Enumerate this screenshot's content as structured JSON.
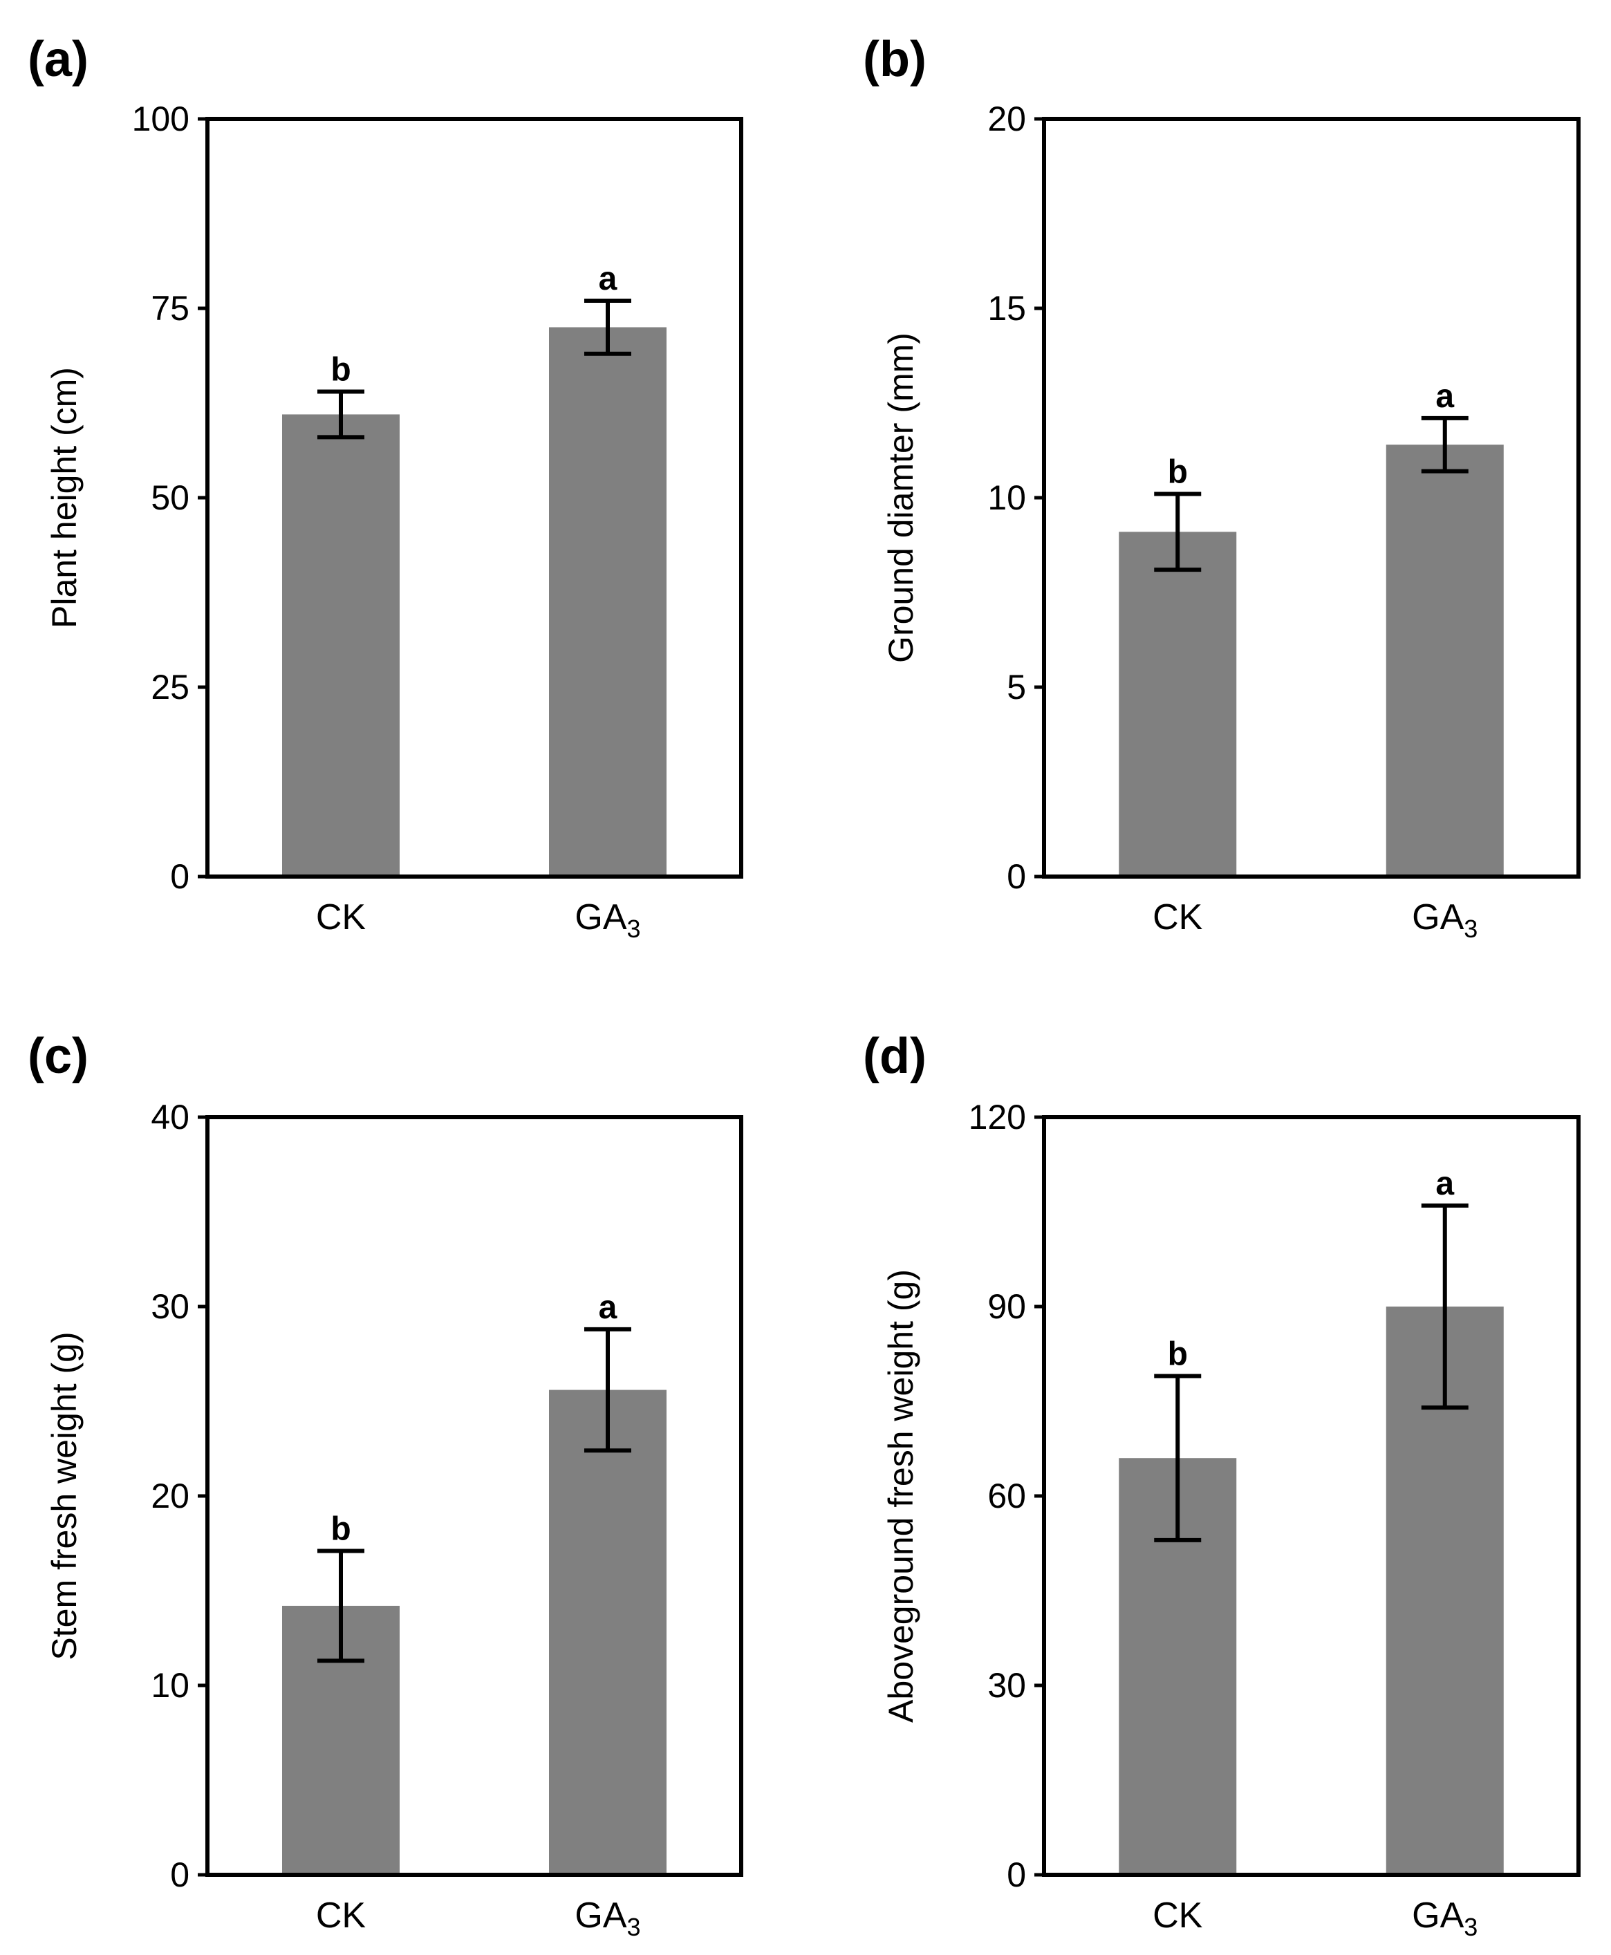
{
  "chart_data": [
    {
      "type": "bar",
      "panel": "(a)",
      "categories": [
        "CK",
        "GA"
      ],
      "category_subscripts": [
        "",
        "3"
      ],
      "values": [
        61,
        72.5
      ],
      "errors": [
        3,
        3.5
      ],
      "significance": [
        "b",
        "a"
      ],
      "ylabel": "Plant height (cm)",
      "ylim": [
        0,
        100
      ],
      "yticks": [
        0,
        25,
        50,
        75,
        100
      ],
      "bar_color": "#808080"
    },
    {
      "type": "bar",
      "panel": "(b)",
      "categories": [
        "CK",
        "GA"
      ],
      "category_subscripts": [
        "",
        "3"
      ],
      "values": [
        9.1,
        11.4
      ],
      "errors": [
        1.0,
        0.7
      ],
      "significance": [
        "b",
        "a"
      ],
      "ylabel": "Ground diamter (mm)",
      "ylim": [
        0,
        20
      ],
      "yticks": [
        0,
        5,
        10,
        15,
        20
      ],
      "bar_color": "#808080"
    },
    {
      "type": "bar",
      "panel": "(c)",
      "categories": [
        "CK",
        "GA"
      ],
      "category_subscripts": [
        "",
        "3"
      ],
      "values": [
        14.2,
        25.6
      ],
      "errors": [
        2.9,
        3.2
      ],
      "significance": [
        "b",
        "a"
      ],
      "ylabel": "Stem fresh weight (g)",
      "ylim": [
        0,
        40
      ],
      "yticks": [
        0,
        10,
        20,
        30,
        40
      ],
      "bar_color": "#808080"
    },
    {
      "type": "bar",
      "panel": "(d)",
      "categories": [
        "CK",
        "GA"
      ],
      "category_subscripts": [
        "",
        "3"
      ],
      "values": [
        66,
        90
      ],
      "errors": [
        13,
        16
      ],
      "significance": [
        "b",
        "a"
      ],
      "ylabel": "Aboveground fresh weight (g)",
      "ylim": [
        0,
        120
      ],
      "yticks": [
        0,
        30,
        60,
        90,
        120
      ],
      "bar_color": "#808080"
    }
  ]
}
